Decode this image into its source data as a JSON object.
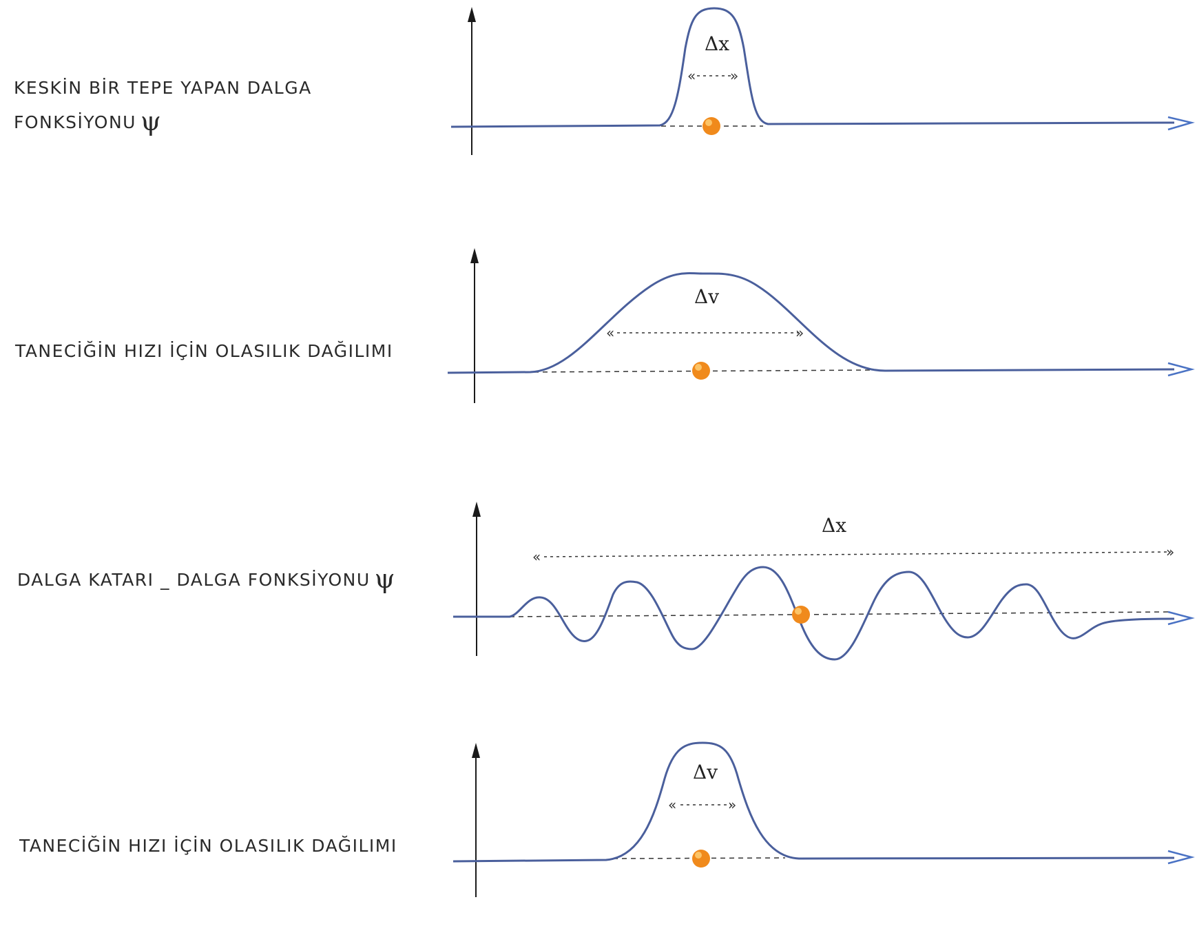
{
  "colors": {
    "curve": "#4a5f9c",
    "axis_arrow": "#4a72c4",
    "vertical_axis": "#1a1a1a",
    "particle": "#f08a1c",
    "text": "#2a2a2a"
  },
  "panels": [
    {
      "caption_lines": [
        "KESKİN BİR TEPE YAPAN DALGA",
        "FONKSİYONU"
      ],
      "symbol": "ψ",
      "delta_label": "Δx",
      "curve_type": "narrow-peak"
    },
    {
      "caption_lines": [
        "TANECİĞİN HIZI İÇİN OLASILIK DAĞILIMI"
      ],
      "symbol": "",
      "delta_label": "Δv",
      "curve_type": "wide-peak"
    },
    {
      "caption_lines": [
        "DALGA KATARI _ DALGA FONKSİYONU"
      ],
      "symbol": "ψ",
      "delta_label": "Δx",
      "curve_type": "wave-train"
    },
    {
      "caption_lines": [
        "TANECİĞİN HIZI İÇİN OLASILIK DAĞILIMI"
      ],
      "symbol": "",
      "delta_label": "Δv",
      "curve_type": "narrow-peak"
    }
  ]
}
